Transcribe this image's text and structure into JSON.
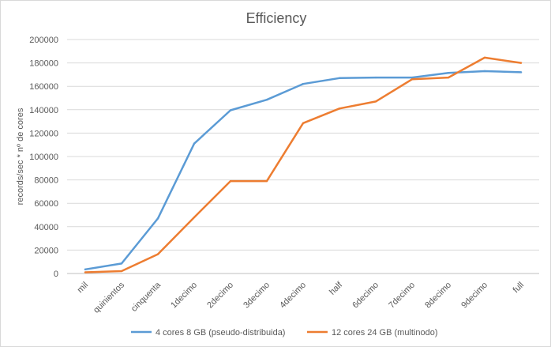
{
  "chart_data": {
    "type": "line",
    "title": "Efficiency",
    "xlabel": "",
    "ylabel": "records/sec * nº de cores",
    "categories": [
      "mil",
      "quinientos",
      "cinquenta",
      "1decimo",
      "2decimo",
      "3decimo",
      "4decimo",
      "half",
      "6decimo",
      "7decimo",
      "8decimo",
      "9decimo",
      "full"
    ],
    "ylim": [
      0,
      200000
    ],
    "yticks": [
      0,
      20000,
      40000,
      60000,
      80000,
      100000,
      120000,
      140000,
      160000,
      180000,
      200000
    ],
    "grid": true,
    "legend_position": "bottom",
    "series": [
      {
        "name": "4 cores 8 GB (pseudo-distribuida)",
        "color": "#5b9bd5",
        "values": [
          3500,
          8500,
          47000,
          111000,
          139500,
          148500,
          162000,
          167000,
          167500,
          167500,
          171500,
          173000,
          172000
        ]
      },
      {
        "name": "12 cores 24 GB (multinodo)",
        "color": "#ed7d31",
        "values": [
          1000,
          2000,
          16500,
          48000,
          79000,
          79000,
          128500,
          141000,
          147000,
          166000,
          167500,
          184500,
          180000
        ]
      }
    ]
  }
}
